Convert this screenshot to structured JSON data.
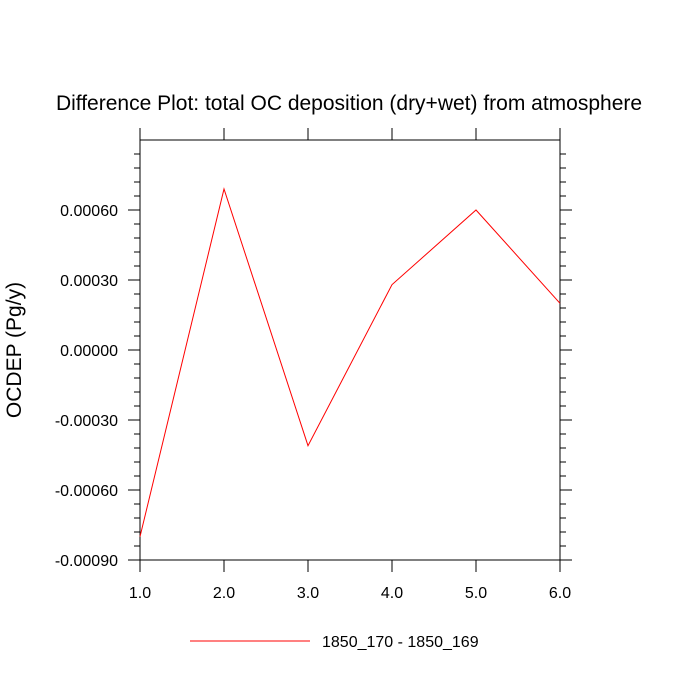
{
  "chart_data": {
    "type": "line",
    "title": "Difference Plot: total OC deposition (dry+wet) from atmosphere",
    "xlabel": "",
    "ylabel": "OCDEP  (Pg/y)",
    "x": [
      1.0,
      2.0,
      3.0,
      4.0,
      5.0,
      6.0
    ],
    "series": [
      {
        "name": "1850_170 - 1850_169",
        "color": "#ff0000",
        "values": [
          -0.0008,
          0.00069,
          -0.00041,
          0.00028,
          0.0006,
          0.0002
        ]
      }
    ],
    "xlim": [
      1.0,
      6.0
    ],
    "ylim": [
      -0.0009,
      0.0009
    ],
    "xticks": [
      1.0,
      2.0,
      3.0,
      4.0,
      5.0,
      6.0
    ],
    "xtick_labels": [
      "1.0",
      "2.0",
      "3.0",
      "4.0",
      "5.0",
      "6.0"
    ],
    "yticks": [
      -0.0009,
      -0.0006,
      -0.0003,
      0.0,
      0.0003,
      0.0006
    ],
    "ytick_labels": [
      "-0.00090",
      "-0.00060",
      "-0.00030",
      "0.00000",
      "0.00030",
      "0.00060"
    ],
    "grid": false,
    "legend_position": "bottom-center"
  }
}
